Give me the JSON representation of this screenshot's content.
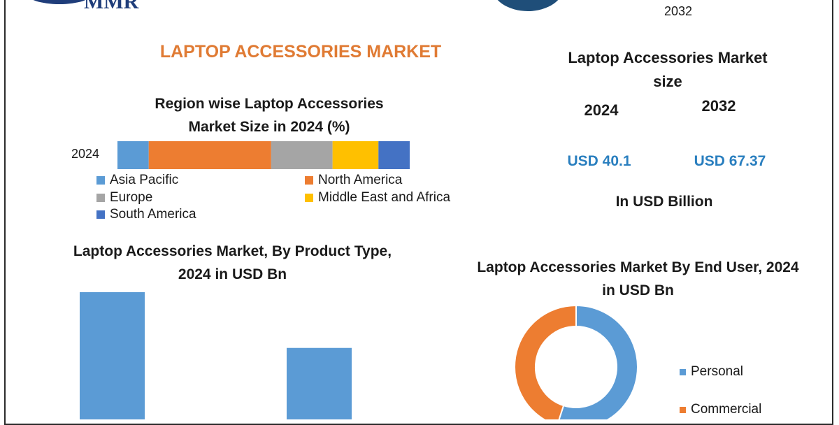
{
  "header": {
    "logo_text": "MMR",
    "year_caption": "2032"
  },
  "main_title": "LAPTOP ACCESSORIES MARKET",
  "market_size": {
    "title": "Laptop Accessories Market size",
    "year_a": "2024",
    "year_b": "2032",
    "value_a": "USD 40.1",
    "value_b": "USD 67.37",
    "unit": "In USD Billion"
  },
  "chart_data": [
    {
      "type": "bar",
      "orientation": "horizontal-stacked",
      "title": "Region wise Laptop Accessories Market Size in 2024 (%)",
      "categories": [
        "2024"
      ],
      "series": [
        {
          "name": "Asia Pacific",
          "values": [
            10.7
          ],
          "color": "#5b9bd5"
        },
        {
          "name": "North America",
          "values": [
            41.9
          ],
          "color": "#ed7d31"
        },
        {
          "name": "Europe",
          "values": [
            21.0
          ],
          "color": "#a5a5a5"
        },
        {
          "name": "Middle East and Africa",
          "values": [
            15.7
          ],
          "color": "#ffc000"
        },
        {
          "name": "South America",
          "values": [
            10.7
          ],
          "color": "#4472c4"
        }
      ],
      "legend": "bottom"
    },
    {
      "type": "bar",
      "title": "Laptop Accessories Market, By Product Type, 2024 in USD Bn",
      "categories": [
        "",
        ""
      ],
      "values": [
        25.2,
        15.0
      ],
      "color": "#5b9bd5"
    },
    {
      "type": "pie",
      "variant": "donut",
      "title": "Laptop Accessories Market By End User, 2024 in USD Bn",
      "series": [
        {
          "name": "Personal",
          "value": 55,
          "color": "#5b9bd5"
        },
        {
          "name": "Commercial",
          "value": 45,
          "color": "#ed7d31"
        }
      ],
      "legend": "right"
    }
  ]
}
